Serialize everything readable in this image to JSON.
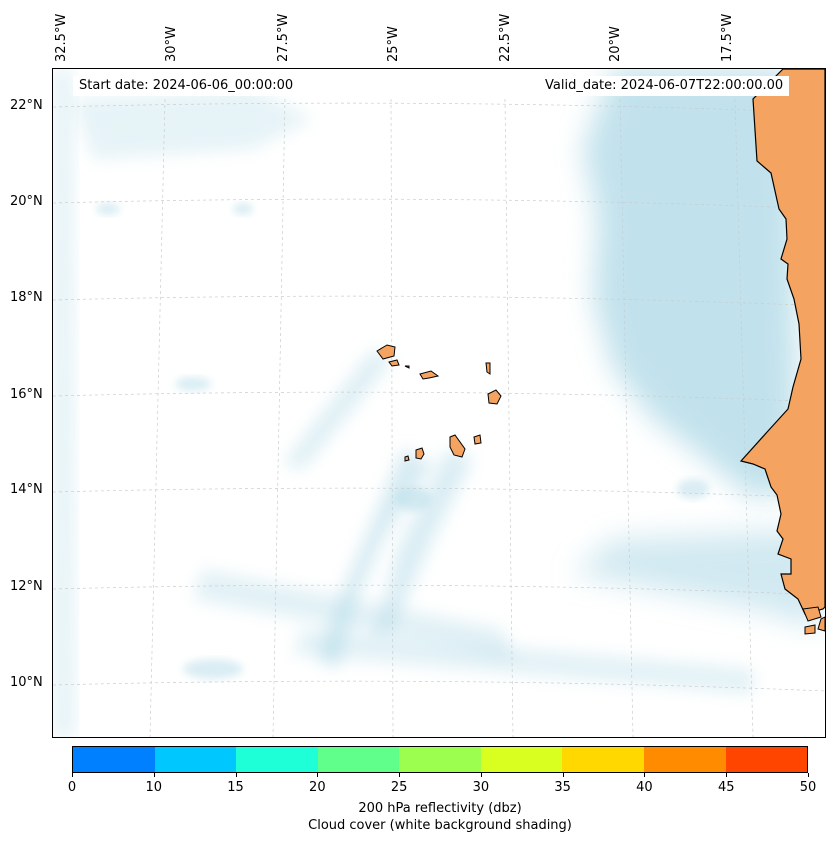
{
  "map": {
    "start_date": "Start date: 2024-06-06_00:00:00",
    "valid_date": "Valid_date: 2024-06-07T22:00:00.00",
    "longitude_labels": [
      "32.5°W",
      "30°W",
      "27.5°W",
      "25°W",
      "22.5°W",
      "20°W",
      "17.5°W"
    ],
    "latitude_labels": [
      "22°N",
      "20°N",
      "18°N",
      "16°N",
      "14°N",
      "12°N",
      "10°N"
    ],
    "colors": {
      "land": "#f4a460",
      "cloud": "#add8e6",
      "coastline": "#000000",
      "grid": "#cccccc"
    }
  },
  "colorbar": {
    "label": "200 hPa reflectivity (dbz)",
    "sublabel": "Cloud cover (white background shading)",
    "ticks": [
      "0",
      "10",
      "15",
      "20",
      "25",
      "30",
      "35",
      "40",
      "45",
      "50"
    ],
    "segment_colors": [
      "#0080ff",
      "#00c8ff",
      "#1effd8",
      "#60ff8c",
      "#9cff50",
      "#d8ff20",
      "#ffd800",
      "#ff8c00",
      "#ff4500"
    ]
  }
}
